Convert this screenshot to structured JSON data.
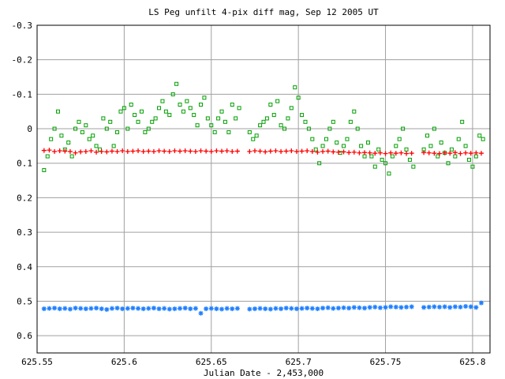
{
  "chart_data": {
    "type": "scatter",
    "title": "LS Peg unfilt 4-pix diff mag, Sep 12 2005 UT",
    "xlabel": "Julian Date - 2,453,000",
    "ylabel": "",
    "xlim": [
      625.55,
      625.81
    ],
    "ylim": [
      -0.3,
      0.65
    ],
    "y_inverted": true,
    "grid": true,
    "x_ticks": [
      625.55,
      625.6,
      625.65,
      625.7,
      625.75,
      625.8
    ],
    "x_tick_labels": [
      "625.55",
      "625.6",
      "625.65",
      "625.7",
      "625.75",
      "625.8"
    ],
    "y_ticks": [
      -0.3,
      -0.2,
      -0.1,
      0,
      0.1,
      0.2,
      0.3,
      0.4,
      0.5,
      0.6
    ],
    "y_tick_labels": [
      "-0.3",
      "-0.2",
      "-0.1",
      "0",
      "0.1",
      "0.2",
      "0.3",
      "0.4",
      "0.5",
      "0.6"
    ],
    "series": [
      {
        "color": "#00a000",
        "marker": "square",
        "x": [
          625.554,
          625.556,
          625.558,
          625.56,
          625.562,
          625.564,
          625.566,
          625.568,
          625.57,
          625.572,
          625.574,
          625.576,
          625.578,
          625.58,
          625.582,
          625.584,
          625.586,
          625.588,
          625.59,
          625.592,
          625.594,
          625.596,
          625.598,
          625.6,
          625.602,
          625.604,
          625.606,
          625.608,
          625.61,
          625.612,
          625.614,
          625.616,
          625.618,
          625.62,
          625.622,
          625.624,
          625.626,
          625.628,
          625.63,
          625.632,
          625.634,
          625.636,
          625.638,
          625.64,
          625.642,
          625.644,
          625.646,
          625.648,
          625.65,
          625.652,
          625.654,
          625.656,
          625.658,
          625.66,
          625.662,
          625.664,
          625.666,
          625.672,
          625.674,
          625.676,
          625.678,
          625.68,
          625.682,
          625.684,
          625.686,
          625.688,
          625.69,
          625.692,
          625.694,
          625.696,
          625.698,
          625.7,
          625.702,
          625.704,
          625.706,
          625.708,
          625.71,
          625.712,
          625.714,
          625.716,
          625.718,
          625.72,
          625.722,
          625.724,
          625.726,
          625.728,
          625.73,
          625.732,
          625.734,
          625.736,
          625.738,
          625.74,
          625.742,
          625.744,
          625.746,
          625.748,
          625.75,
          625.752,
          625.754,
          625.756,
          625.758,
          625.76,
          625.762,
          625.764,
          625.766,
          625.772,
          625.774,
          625.776,
          625.778,
          625.78,
          625.782,
          625.784,
          625.786,
          625.788,
          625.79,
          625.792,
          625.794,
          625.796,
          625.798,
          625.8,
          625.802,
          625.804,
          625.806
        ],
        "y": [
          0.12,
          0.08,
          0.03,
          0.0,
          -0.05,
          0.02,
          0.06,
          0.04,
          0.08,
          0.0,
          -0.02,
          0.01,
          -0.01,
          0.03,
          0.02,
          0.05,
          0.06,
          -0.03,
          0.0,
          -0.02,
          0.05,
          0.01,
          -0.05,
          -0.06,
          0.0,
          -0.07,
          -0.04,
          -0.02,
          -0.05,
          0.01,
          0.0,
          -0.02,
          -0.03,
          -0.06,
          -0.08,
          -0.05,
          -0.04,
          -0.1,
          -0.13,
          -0.07,
          -0.05,
          -0.08,
          -0.06,
          -0.04,
          -0.01,
          -0.07,
          -0.09,
          -0.03,
          -0.01,
          0.01,
          -0.03,
          -0.05,
          -0.02,
          0.01,
          -0.07,
          -0.03,
          -0.06,
          0.01,
          0.03,
          0.02,
          -0.01,
          -0.02,
          -0.03,
          -0.07,
          -0.04,
          -0.08,
          -0.01,
          0.0,
          -0.03,
          -0.06,
          -0.12,
          -0.09,
          -0.04,
          -0.02,
          0.0,
          0.03,
          0.06,
          0.1,
          0.05,
          0.03,
          0.0,
          -0.02,
          0.04,
          0.07,
          0.05,
          0.03,
          -0.02,
          -0.05,
          0.0,
          0.05,
          0.08,
          0.04,
          0.08,
          0.11,
          0.06,
          0.09,
          0.1,
          0.13,
          0.08,
          0.05,
          0.03,
          0.0,
          0.06,
          0.09,
          0.11,
          0.06,
          0.02,
          0.05,
          0.0,
          0.08,
          0.04,
          0.07,
          0.1,
          0.06,
          0.08,
          0.03,
          -0.02,
          0.05,
          0.09,
          0.11,
          0.08,
          0.02,
          0.03
        ]
      },
      {
        "color": "#ff0000",
        "marker": "plus",
        "x": [
          625.554,
          625.557,
          625.56,
          625.563,
          625.566,
          625.569,
          625.572,
          625.575,
          625.578,
          625.581,
          625.584,
          625.587,
          625.59,
          625.593,
          625.596,
          625.599,
          625.602,
          625.605,
          625.608,
          625.611,
          625.614,
          625.617,
          625.62,
          625.623,
          625.626,
          625.629,
          625.632,
          625.635,
          625.638,
          625.641,
          625.644,
          625.647,
          625.65,
          625.653,
          625.656,
          625.659,
          625.662,
          625.665,
          625.672,
          625.675,
          625.678,
          625.681,
          625.684,
          625.687,
          625.69,
          625.693,
          625.696,
          625.699,
          625.702,
          625.705,
          625.708,
          625.711,
          625.714,
          625.717,
          625.72,
          625.723,
          625.726,
          625.729,
          625.732,
          625.735,
          625.738,
          625.741,
          625.744,
          625.747,
          625.75,
          625.753,
          625.756,
          625.759,
          625.762,
          625.765,
          625.772,
          625.775,
          625.778,
          625.781,
          625.784,
          625.787,
          625.79,
          625.793,
          625.796,
          625.799,
          625.802,
          625.805
        ],
        "y": [
          0.063,
          0.062,
          0.066,
          0.064,
          0.065,
          0.066,
          0.07,
          0.067,
          0.066,
          0.064,
          0.068,
          0.066,
          0.067,
          0.065,
          0.066,
          0.064,
          0.066,
          0.065,
          0.064,
          0.066,
          0.065,
          0.066,
          0.064,
          0.065,
          0.066,
          0.064,
          0.065,
          0.064,
          0.065,
          0.066,
          0.064,
          0.065,
          0.066,
          0.064,
          0.065,
          0.064,
          0.066,
          0.065,
          0.066,
          0.064,
          0.065,
          0.067,
          0.065,
          0.064,
          0.066,
          0.065,
          0.064,
          0.066,
          0.065,
          0.064,
          0.066,
          0.068,
          0.066,
          0.065,
          0.067,
          0.068,
          0.067,
          0.069,
          0.068,
          0.07,
          0.069,
          0.07,
          0.071,
          0.07,
          0.072,
          0.07,
          0.071,
          0.07,
          0.072,
          0.071,
          0.069,
          0.07,
          0.071,
          0.072,
          0.07,
          0.071,
          0.069,
          0.072,
          0.07,
          0.071,
          0.07,
          0.071
        ]
      },
      {
        "color": "#2080ff",
        "marker": "star",
        "x": [
          625.554,
          625.557,
          625.56,
          625.563,
          625.566,
          625.569,
          625.572,
          625.575,
          625.578,
          625.581,
          625.584,
          625.587,
          625.59,
          625.593,
          625.596,
          625.599,
          625.602,
          625.605,
          625.608,
          625.611,
          625.614,
          625.617,
          625.62,
          625.623,
          625.626,
          625.629,
          625.632,
          625.635,
          625.638,
          625.641,
          625.644,
          625.647,
          625.65,
          625.653,
          625.656,
          625.659,
          625.662,
          625.665,
          625.672,
          625.675,
          625.678,
          625.681,
          625.684,
          625.687,
          625.69,
          625.693,
          625.696,
          625.699,
          625.702,
          625.705,
          625.708,
          625.711,
          625.714,
          625.717,
          625.72,
          625.723,
          625.726,
          625.729,
          625.732,
          625.735,
          625.738,
          625.741,
          625.744,
          625.747,
          625.75,
          625.753,
          625.756,
          625.759,
          625.762,
          625.765,
          625.772,
          625.775,
          625.778,
          625.781,
          625.784,
          625.787,
          625.79,
          625.793,
          625.796,
          625.799,
          625.802,
          625.805
        ],
        "y": [
          0.522,
          0.521,
          0.52,
          0.522,
          0.521,
          0.523,
          0.52,
          0.521,
          0.522,
          0.521,
          0.52,
          0.522,
          0.524,
          0.521,
          0.52,
          0.522,
          0.521,
          0.52,
          0.521,
          0.522,
          0.521,
          0.52,
          0.522,
          0.521,
          0.523,
          0.522,
          0.521,
          0.52,
          0.522,
          0.521,
          0.535,
          0.522,
          0.521,
          0.522,
          0.523,
          0.521,
          0.522,
          0.521,
          0.523,
          0.522,
          0.521,
          0.522,
          0.523,
          0.521,
          0.522,
          0.52,
          0.521,
          0.522,
          0.521,
          0.52,
          0.521,
          0.522,
          0.52,
          0.519,
          0.521,
          0.52,
          0.519,
          0.52,
          0.518,
          0.519,
          0.52,
          0.518,
          0.517,
          0.519,
          0.518,
          0.516,
          0.517,
          0.518,
          0.517,
          0.516,
          0.518,
          0.517,
          0.516,
          0.517,
          0.516,
          0.518,
          0.516,
          0.517,
          0.515,
          0.516,
          0.518,
          0.505
        ]
      }
    ]
  }
}
